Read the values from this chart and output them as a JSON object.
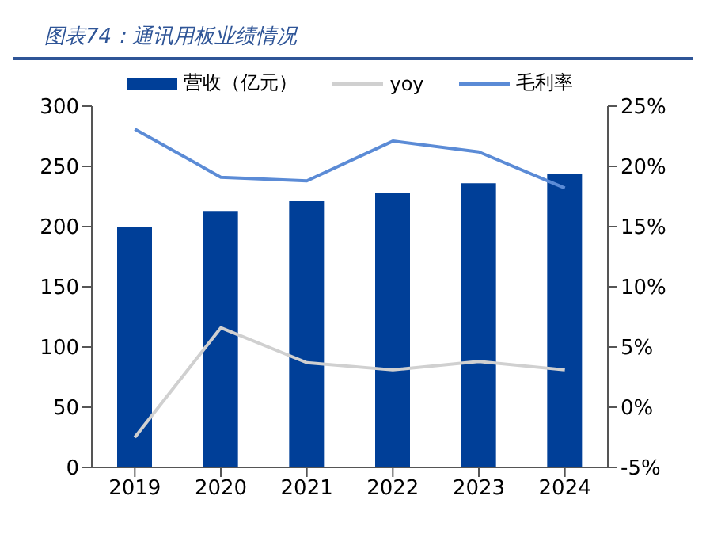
{
  "chart_data": {
    "type": "bar",
    "title": "图表74：通讯用板业绩情况",
    "categories": [
      "2019",
      "2020",
      "2021",
      "2022",
      "2023",
      "2024"
    ],
    "series": [
      {
        "name": "营收（亿元）",
        "color": "#003f98",
        "values": [
          200,
          213,
          221,
          228,
          236,
          244
        ]
      },
      {
        "name": "yoy",
        "type": "line",
        "axis": "y2",
        "color": "#d0d0d0",
        "values": [
          -2.5,
          6.6,
          3.7,
          3.1,
          3.8,
          3.1
        ]
      },
      {
        "name": "毛利率",
        "type": "line",
        "axis": "y2",
        "color": "#5b8bd6",
        "values": [
          23.1,
          19.1,
          18.8,
          22.1,
          21.2,
          18.2
        ]
      }
    ],
    "ylim": [
      0,
      300
    ],
    "yticks": [
      0,
      50,
      100,
      150,
      200,
      250,
      300
    ],
    "y2lim": [
      -5,
      25
    ],
    "y2ticks": [
      {
        "value": -5,
        "label": "-5%"
      },
      {
        "value": 0,
        "label": "0%"
      },
      {
        "value": 5,
        "label": "5%"
      },
      {
        "value": 10,
        "label": "10%"
      },
      {
        "value": 15,
        "label": "15%"
      },
      {
        "value": 20,
        "label": "20%"
      },
      {
        "value": 25,
        "label": "25%"
      }
    ],
    "grid": false,
    "legend": "top",
    "marker": "none",
    "line_style": "solid"
  }
}
